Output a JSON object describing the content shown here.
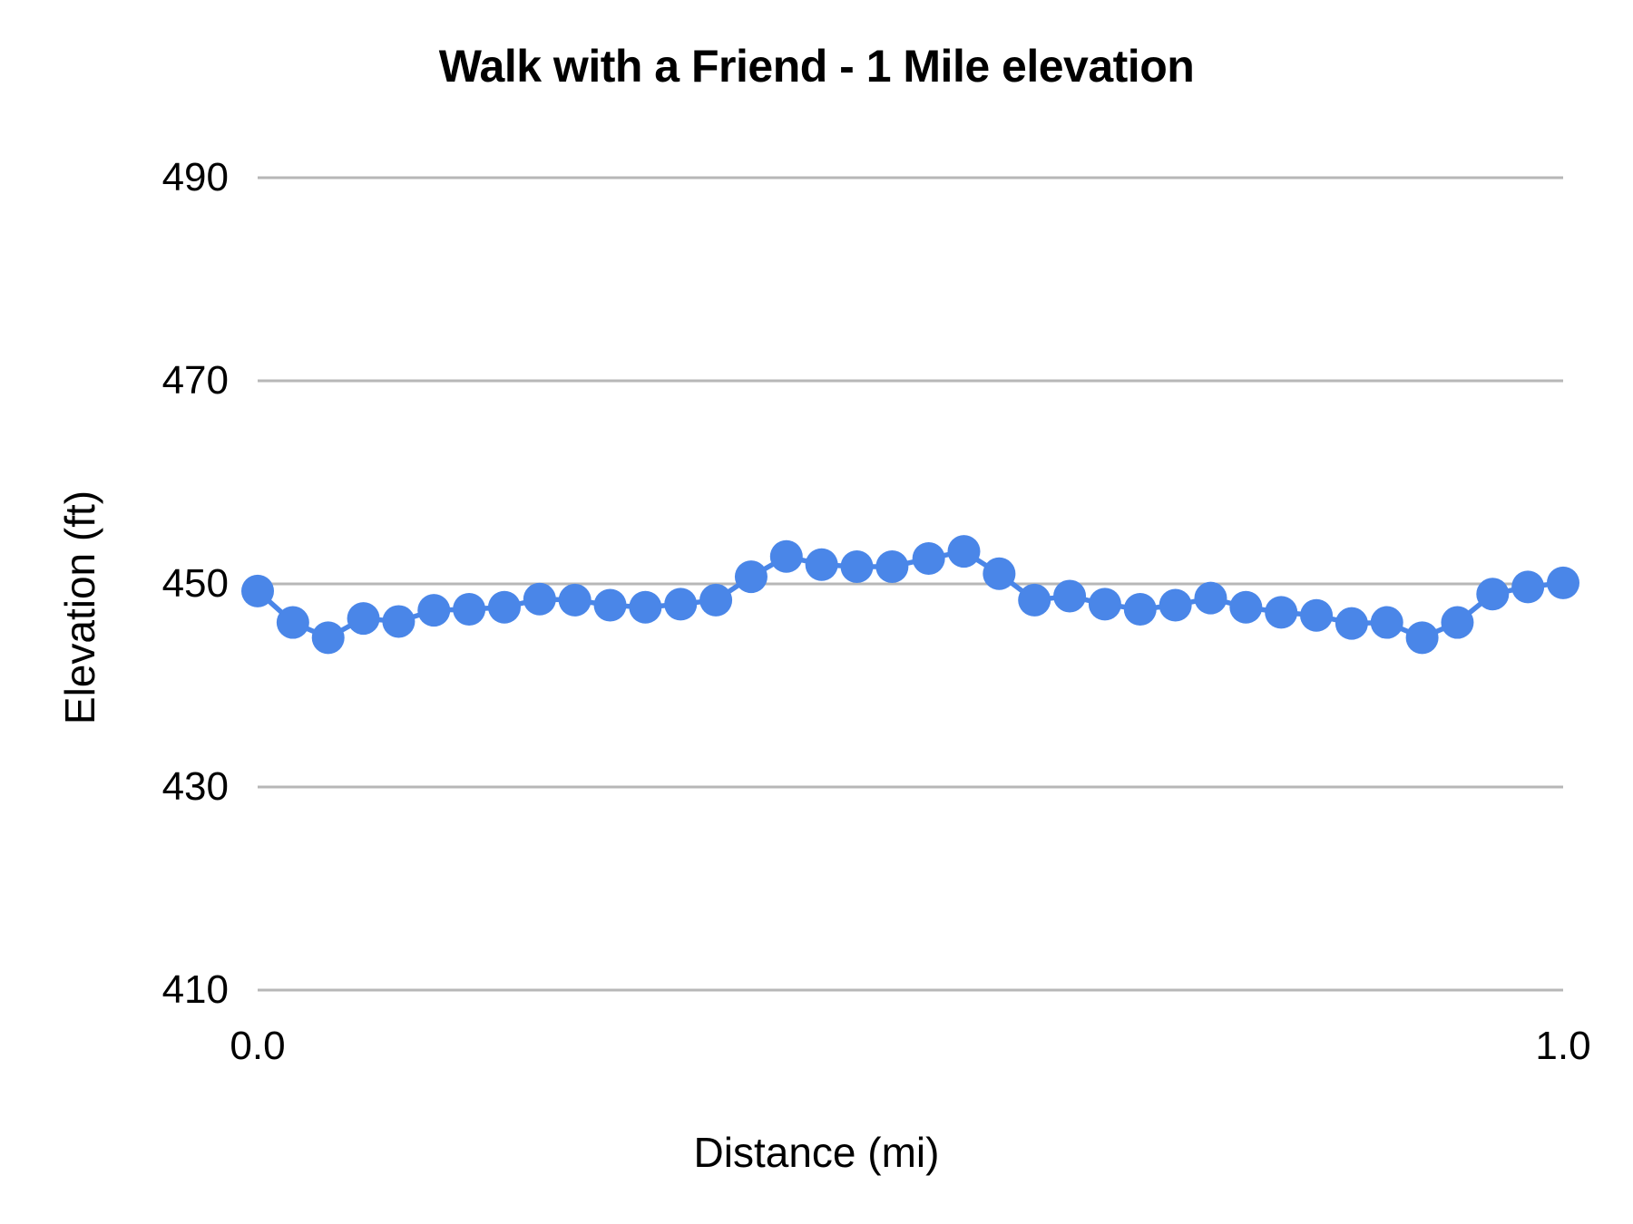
{
  "chart_data": {
    "type": "line",
    "title": "Walk with a Friend - 1 Mile elevation",
    "xlabel": "Distance (mi)",
    "ylabel": "Elevation (ft)",
    "xlim": [
      0.0,
      1.0
    ],
    "ylim": [
      410,
      490
    ],
    "x_ticks": [
      "0.0",
      "1.0"
    ],
    "x_tick_values": [
      0.0,
      1.0
    ],
    "y_ticks": [
      "490",
      "470",
      "450",
      "430",
      "410"
    ],
    "y_tick_values": [
      490,
      470,
      450,
      430,
      410
    ],
    "grid": "horizontal",
    "legend": "none",
    "series": [
      {
        "name": "Elevation",
        "color": "#4a86e8",
        "marker": "circle",
        "x": [
          0.0,
          0.027,
          0.054,
          0.081,
          0.108,
          0.135,
          0.162,
          0.189,
          0.216,
          0.243,
          0.27,
          0.297,
          0.324,
          0.351,
          0.378,
          0.405,
          0.432,
          0.459,
          0.486,
          0.514,
          0.541,
          0.568,
          0.595,
          0.622,
          0.649,
          0.676,
          0.703,
          0.73,
          0.757,
          0.784,
          0.811,
          0.838,
          0.865,
          0.892,
          0.919,
          0.946,
          0.973,
          1.0
        ],
        "values": [
          449.3,
          446.2,
          444.7,
          446.6,
          446.3,
          447.4,
          447.5,
          447.7,
          448.5,
          448.4,
          447.9,
          447.7,
          448.0,
          448.4,
          450.7,
          452.7,
          451.9,
          451.7,
          451.7,
          452.5,
          453.2,
          451.0,
          448.4,
          448.8,
          448.0,
          447.5,
          447.9,
          448.6,
          447.7,
          447.2,
          446.9,
          446.1,
          446.2,
          444.7,
          446.2,
          449.0,
          449.7,
          450.1
        ]
      }
    ]
  },
  "styles": {
    "background": "#ffffff",
    "gridline_color": "#b7b7b7",
    "text_color": "#000000"
  }
}
